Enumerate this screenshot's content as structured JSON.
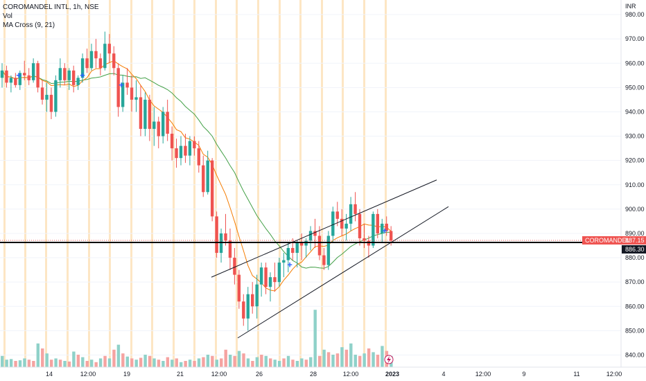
{
  "legend": {
    "symbol_line": "COROMANDEL INTL, 1h, NSE",
    "vol_label": "Vol",
    "ma_label": "MA Cross (9, 21)"
  },
  "currency_label": "INR",
  "colors": {
    "up": "#26a69a",
    "down": "#ef5350",
    "vol_up": "#8fd1c9",
    "vol_down": "#f5a3a1",
    "ma_fast": "#f57c00",
    "ma_slow": "#43a047",
    "session_band": "#fde6c4",
    "support_line": "#000000",
    "cross_marker": "#2962ff",
    "tag_red": "#ef5350",
    "tag_black": "#131722"
  },
  "chart_data": {
    "type": "candlestick",
    "title": "COROMANDEL INTL, 1h, NSE",
    "y_axis": {
      "ylim": [
        835,
        986
      ],
      "ticks": [
        840,
        850,
        860,
        870,
        880,
        890,
        900,
        910,
        920,
        930,
        940,
        950,
        960,
        970,
        980
      ],
      "unit": "INR"
    },
    "x_labels": [
      "14",
      "12:00",
      "19",
      "21",
      "12:00",
      "26",
      "28",
      "12:00",
      "2023",
      "4",
      "12:00",
      "9",
      "11",
      "12:00"
    ],
    "horizontal_line": {
      "value": 886.3,
      "label": "886.30"
    },
    "last_price": {
      "label": "COROMANDEL",
      "value": "887.15"
    },
    "candles": [
      [
        954,
        960,
        950,
        957
      ],
      [
        957,
        959,
        950,
        952
      ],
      [
        952,
        955,
        948,
        954
      ],
      [
        954,
        956,
        950,
        951
      ],
      [
        951,
        957,
        949,
        956
      ],
      [
        956,
        961,
        953,
        955
      ],
      [
        955,
        958,
        951,
        953
      ],
      [
        953,
        962,
        952,
        960
      ],
      [
        960,
        961,
        948,
        950
      ],
      [
        950,
        953,
        943,
        945
      ],
      [
        945,
        952,
        940,
        947
      ],
      [
        947,
        950,
        937,
        940
      ],
      [
        940,
        955,
        938,
        953
      ],
      [
        953,
        962,
        950,
        958
      ],
      [
        958,
        960,
        951,
        953
      ],
      [
        953,
        958,
        949,
        957
      ],
      [
        957,
        959,
        948,
        951
      ],
      [
        951,
        955,
        949,
        954
      ],
      [
        954,
        964,
        952,
        962
      ],
      [
        962,
        966,
        956,
        958
      ],
      [
        958,
        968,
        957,
        965
      ],
      [
        965,
        970,
        958,
        962
      ],
      [
        962,
        964,
        955,
        958
      ],
      [
        958,
        973,
        957,
        968
      ],
      [
        968,
        972,
        960,
        964
      ],
      [
        964,
        967,
        955,
        958
      ],
      [
        958,
        960,
        938,
        942
      ],
      [
        942,
        955,
        940,
        952
      ],
      [
        952,
        958,
        947,
        950
      ],
      [
        950,
        955,
        940,
        945
      ],
      [
        945,
        953,
        940,
        946
      ],
      [
        946,
        951,
        930,
        933
      ],
      [
        933,
        948,
        930,
        945
      ],
      [
        945,
        947,
        928,
        933
      ],
      [
        933,
        942,
        926,
        936
      ],
      [
        936,
        938,
        925,
        930
      ],
      [
        930,
        942,
        927,
        940
      ],
      [
        940,
        945,
        928,
        931
      ],
      [
        931,
        934,
        920,
        925
      ],
      [
        925,
        929,
        917,
        921
      ],
      [
        921,
        930,
        918,
        926
      ],
      [
        926,
        931,
        919,
        922
      ],
      [
        922,
        930,
        918,
        928
      ],
      [
        928,
        930,
        922,
        925
      ],
      [
        925,
        928,
        915,
        918
      ],
      [
        918,
        922,
        905,
        907
      ],
      [
        907,
        924,
        906,
        920
      ],
      [
        920,
        921,
        895,
        897
      ],
      [
        897,
        899,
        880,
        882
      ],
      [
        882,
        892,
        878,
        890
      ],
      [
        890,
        898,
        885,
        887
      ],
      [
        887,
        892,
        875,
        880
      ],
      [
        880,
        884,
        869,
        873
      ],
      [
        873,
        875,
        859,
        862
      ],
      [
        862,
        865,
        852,
        855
      ],
      [
        855,
        868,
        850,
        865
      ],
      [
        865,
        870,
        857,
        860
      ],
      [
        860,
        873,
        855,
        869
      ],
      [
        869,
        878,
        864,
        876
      ],
      [
        876,
        878,
        865,
        868
      ],
      [
        868,
        874,
        862,
        872
      ],
      [
        872,
        878,
        866,
        870
      ],
      [
        870,
        880,
        868,
        878
      ],
      [
        878,
        882,
        872,
        879
      ],
      [
        879,
        886,
        874,
        884
      ],
      [
        884,
        888,
        879,
        882
      ],
      [
        882,
        887,
        876,
        886
      ],
      [
        886,
        890,
        879,
        885
      ],
      [
        885,
        888,
        880,
        887
      ],
      [
        887,
        893,
        883,
        891
      ],
      [
        891,
        896,
        884,
        889
      ],
      [
        889,
        893,
        879,
        881
      ],
      [
        881,
        884,
        875,
        877
      ],
      [
        877,
        891,
        875,
        889
      ],
      [
        889,
        901,
        886,
        899
      ],
      [
        899,
        903,
        893,
        896
      ],
      [
        896,
        900,
        889,
        892
      ],
      [
        892,
        898,
        887,
        894
      ],
      [
        894,
        905,
        891,
        902
      ],
      [
        902,
        907,
        895,
        898
      ],
      [
        898,
        900,
        885,
        888
      ],
      [
        888,
        894,
        884,
        887
      ],
      [
        887,
        889,
        880,
        885
      ],
      [
        885,
        899,
        884,
        898
      ],
      [
        898,
        900,
        888,
        890
      ],
      [
        890,
        896,
        886,
        894
      ],
      [
        894,
        897,
        889,
        891
      ],
      [
        891,
        893,
        885,
        887
      ]
    ],
    "volumes": [
      [
        18,
        1
      ],
      [
        12,
        1
      ],
      [
        13,
        1
      ],
      [
        10,
        0
      ],
      [
        11,
        1
      ],
      [
        14,
        1
      ],
      [
        12,
        0
      ],
      [
        10,
        0
      ],
      [
        38,
        1
      ],
      [
        30,
        0
      ],
      [
        22,
        1
      ],
      [
        12,
        0
      ],
      [
        14,
        1
      ],
      [
        12,
        0
      ],
      [
        10,
        1
      ],
      [
        9,
        0
      ],
      [
        25,
        1
      ],
      [
        20,
        0
      ],
      [
        16,
        1
      ],
      [
        10,
        0
      ],
      [
        12,
        1
      ],
      [
        8,
        0
      ],
      [
        14,
        1
      ],
      [
        18,
        0
      ],
      [
        14,
        1
      ],
      [
        28,
        0
      ],
      [
        36,
        1
      ],
      [
        22,
        0
      ],
      [
        17,
        1
      ],
      [
        14,
        0
      ],
      [
        12,
        1
      ],
      [
        15,
        0
      ],
      [
        20,
        1
      ],
      [
        18,
        0
      ],
      [
        14,
        1
      ],
      [
        12,
        0
      ],
      [
        10,
        1
      ],
      [
        16,
        0
      ],
      [
        12,
        1
      ],
      [
        14,
        0
      ],
      [
        8,
        1
      ],
      [
        10,
        0
      ],
      [
        12,
        1
      ],
      [
        10,
        0
      ],
      [
        14,
        1
      ],
      [
        16,
        0
      ],
      [
        20,
        1
      ],
      [
        18,
        0
      ],
      [
        12,
        1
      ],
      [
        14,
        0
      ],
      [
        28,
        0
      ],
      [
        20,
        1
      ],
      [
        18,
        0
      ],
      [
        26,
        1
      ],
      [
        22,
        0
      ],
      [
        14,
        1
      ],
      [
        10,
        0
      ],
      [
        16,
        1
      ],
      [
        20,
        0
      ],
      [
        18,
        1
      ],
      [
        14,
        0
      ],
      [
        12,
        1
      ],
      [
        10,
        1
      ],
      [
        14,
        0
      ],
      [
        18,
        1
      ],
      [
        12,
        0
      ],
      [
        10,
        1
      ],
      [
        14,
        1
      ],
      [
        12,
        0
      ],
      [
        16,
        1
      ],
      [
        92,
        1
      ],
      [
        18,
        0
      ],
      [
        28,
        1
      ],
      [
        24,
        0
      ],
      [
        20,
        1
      ],
      [
        22,
        0
      ],
      [
        32,
        1
      ],
      [
        28,
        0
      ],
      [
        38,
        1
      ],
      [
        20,
        1
      ],
      [
        18,
        0
      ],
      [
        22,
        1
      ],
      [
        30,
        0
      ],
      [
        24,
        1
      ],
      [
        20,
        0
      ],
      [
        34,
        1
      ],
      [
        26,
        0
      ],
      [
        18,
        1
      ]
    ]
  }
}
